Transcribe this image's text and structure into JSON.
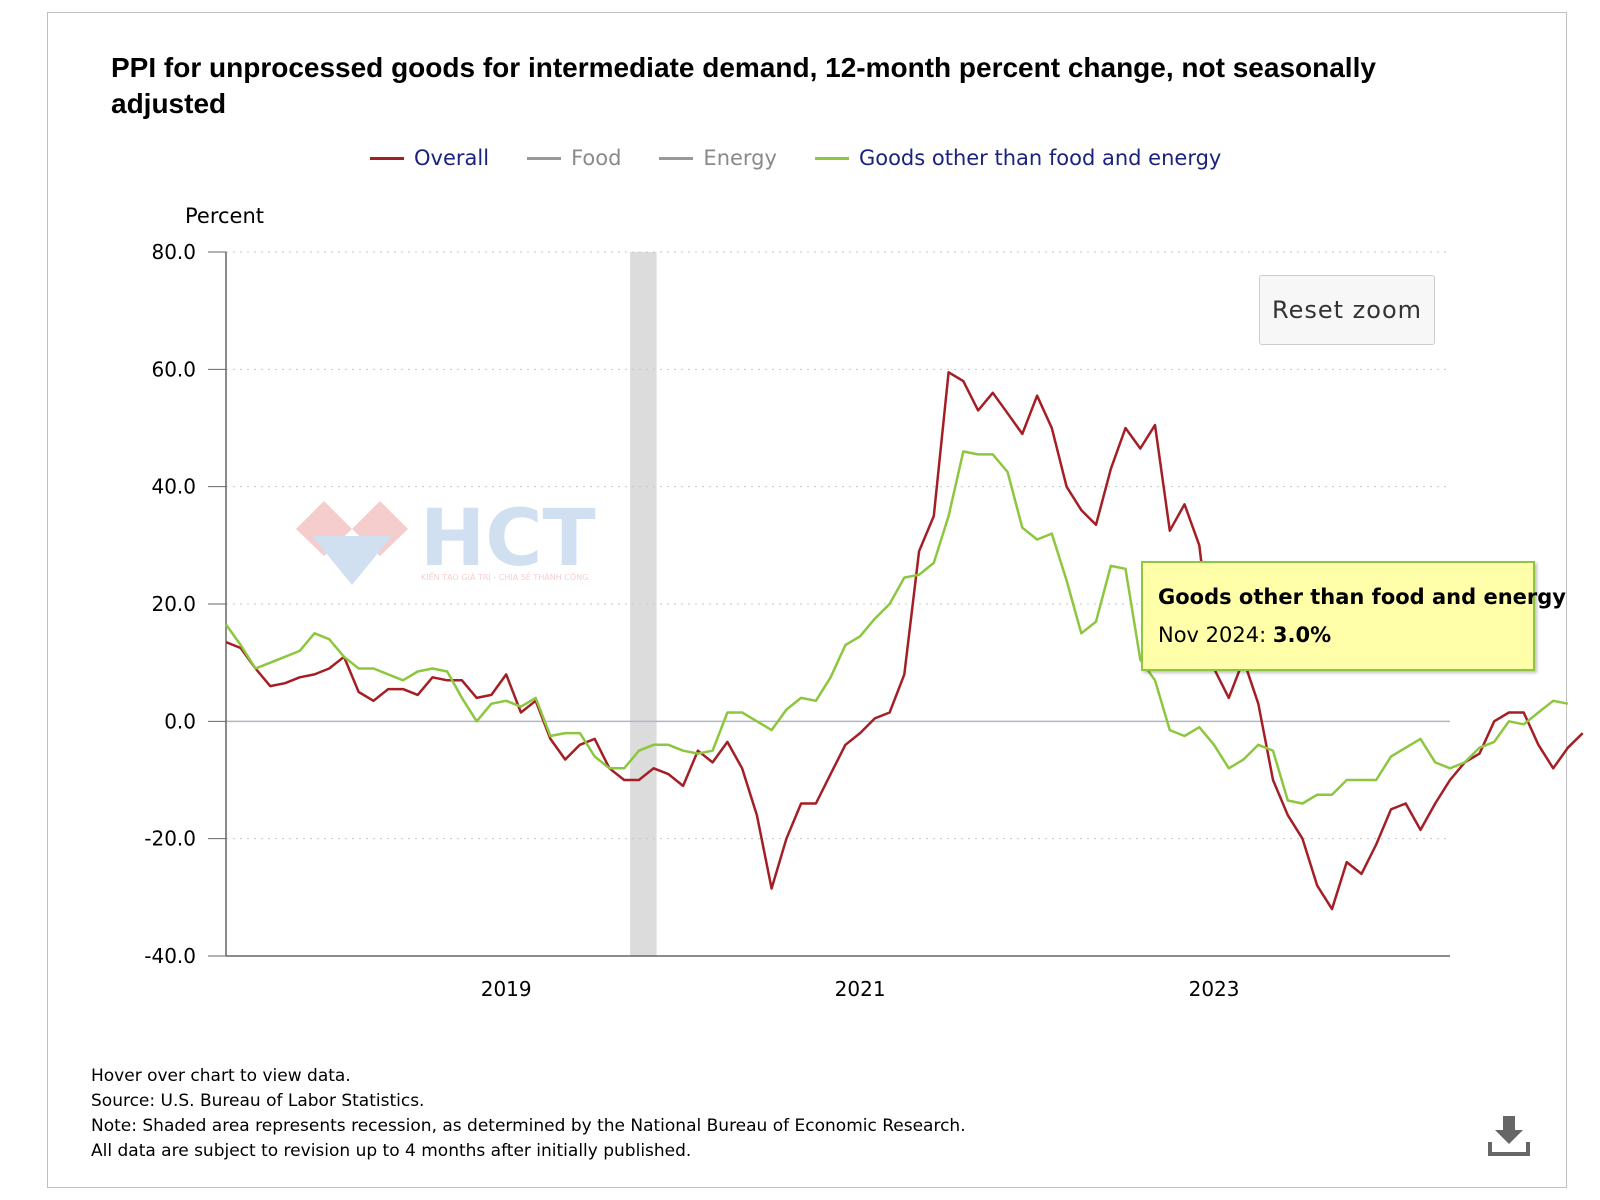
{
  "title": "PPI for unprocessed goods for intermediate demand, 12-month percent change, not seasonally adjusted",
  "legend": [
    {
      "label": "Overall",
      "color": "#a31f25",
      "text_color": "#1a237e"
    },
    {
      "label": "Food",
      "color": "#999999",
      "text_color": "#8a8a8a"
    },
    {
      "label": "Energy",
      "color": "#999999",
      "text_color": "#8a8a8a"
    },
    {
      "label": "Goods other than food and energy",
      "color": "#8dc63f",
      "text_color": "#1a237e"
    }
  ],
  "reset_zoom_label": "Reset zoom",
  "tooltip": {
    "series": "Goods other than food and energy",
    "period": "Nov 2024",
    "value": "3.0%"
  },
  "watermark": {
    "brand": "HCT",
    "tagline": "KIẾN TẠO GIÁ TRỊ - CHIA SẺ THÀNH CÔNG"
  },
  "footer": {
    "hover": "Hover over chart to view data.",
    "source": "Source: U.S. Bureau of Labor Statistics.",
    "note": "Note: Shaded area represents recession, as determined by the National Bureau of Economic Research.",
    "revision": "All data are subject to revision up to 4 months after initially published."
  },
  "chart_data": {
    "type": "line",
    "ylabel": "Percent",
    "ylim": [
      -40,
      80
    ],
    "yticks": [
      80,
      60,
      40,
      20,
      0,
      -20,
      -40
    ],
    "ytick_labels": [
      "80.0",
      "60.0",
      "40.0",
      "20.0",
      "0.0",
      "-20.0",
      "-40.0"
    ],
    "xlim": [
      2017.9167,
      2024.8333
    ],
    "xticks": [
      2019.5,
      2021.5,
      2023.5
    ],
    "xtick_labels": [
      "2019",
      "2021",
      "2023"
    ],
    "grid": true,
    "recession": [
      2020.2,
      2020.35
    ],
    "start_year": 2017.9167,
    "step": 0.08333,
    "series": [
      {
        "name": "Overall",
        "color": "#a31f25",
        "values": [
          13.5,
          12.5,
          9,
          6,
          6.5,
          7.5,
          8,
          9,
          11,
          5,
          3.5,
          5.5,
          5.5,
          4.5,
          7.5,
          7,
          7,
          4,
          4.5,
          8,
          1.5,
          3.5,
          -3,
          -6.5,
          -4,
          -3,
          -8,
          -10,
          -10,
          -8,
          -9,
          -11,
          -5,
          -7,
          -3.5,
          -8,
          -16,
          -28.5,
          -20,
          -14,
          -14,
          -9,
          -4,
          -2,
          0.5,
          1.5,
          8,
          29,
          35,
          59.5,
          58,
          53,
          56,
          52.5,
          49,
          55.5,
          50,
          40,
          36,
          33.5,
          43,
          50,
          46.5,
          50.5,
          32.5,
          37,
          30,
          9,
          4,
          10.5,
          3,
          -10,
          -16,
          -20,
          -28,
          -32,
          -24,
          -26,
          -21,
          -15,
          -14,
          -18.5,
          -14,
          -10,
          -7,
          -5.5,
          0,
          1.5,
          1.5,
          -4,
          -8,
          -4.5,
          -2
        ]
      },
      {
        "name": "Goods other than food and energy",
        "color": "#8dc63f",
        "values": [
          16.5,
          13,
          9,
          10,
          11,
          12,
          15,
          14,
          11,
          9,
          9,
          8,
          7,
          8.5,
          9,
          8.5,
          4,
          0,
          3,
          3.5,
          2.5,
          4,
          -2.5,
          -2,
          -2,
          -6,
          -8,
          -8,
          -5,
          -4,
          -4,
          -5,
          -5.5,
          -5,
          1.5,
          1.5,
          0,
          -1.5,
          2,
          4,
          3.5,
          7.5,
          13,
          14.5,
          17.5,
          20,
          24.5,
          25,
          27,
          35,
          46,
          45.5,
          45.5,
          42.5,
          33,
          31,
          32,
          24,
          15,
          17,
          26.5,
          26,
          10.5,
          7,
          -1.5,
          -2.5,
          -1,
          -4,
          -8,
          -6.5,
          -4,
          -5,
          -13.5,
          -14,
          -12.5,
          -12.5,
          -10,
          -10,
          -10,
          -6,
          -4.5,
          -3,
          -7,
          -8,
          -7,
          -4.5,
          -3.5,
          0,
          -0.5,
          1.5,
          3.5,
          3
        ]
      }
    ]
  }
}
